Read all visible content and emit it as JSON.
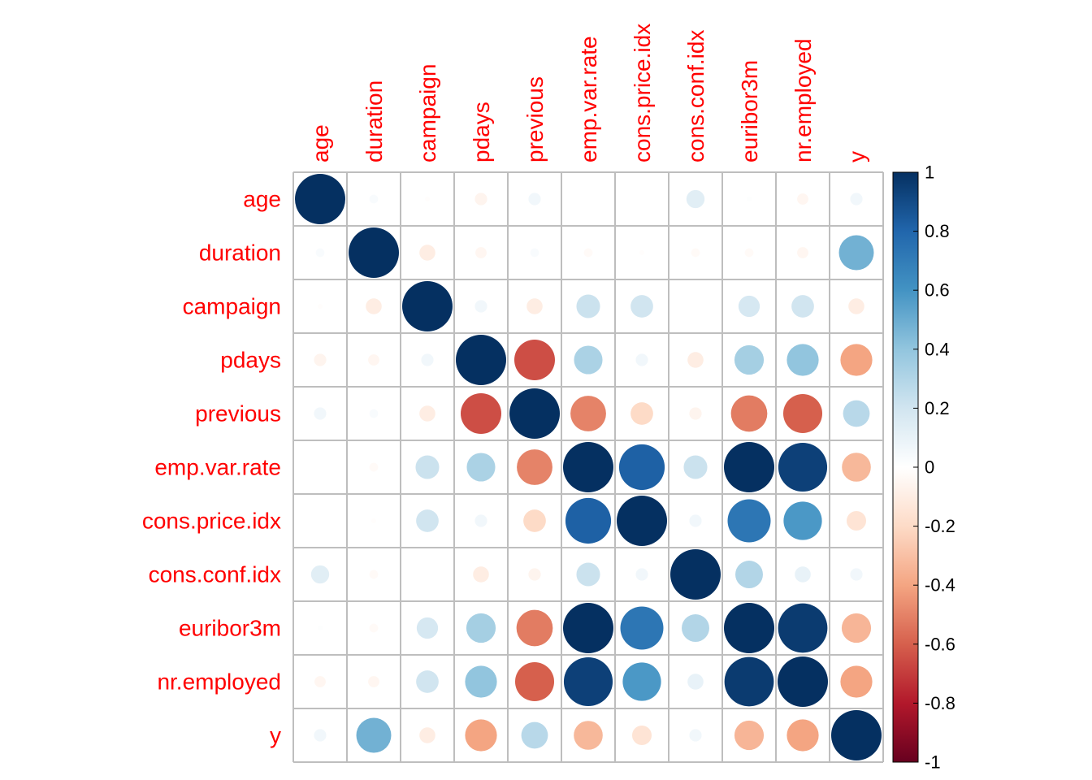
{
  "chart_data": {
    "type": "heatmap",
    "style": "corrplot-circle",
    "variables": [
      "age",
      "duration",
      "campaign",
      "pdays",
      "previous",
      "emp.var.rate",
      "cons.price.idx",
      "cons.conf.idx",
      "euribor3m",
      "nr.employed",
      "y"
    ],
    "matrix": [
      [
        1.0,
        0.03,
        -0.01,
        -0.06,
        0.06,
        0.0,
        0.0,
        0.13,
        0.01,
        -0.05,
        0.06
      ],
      [
        0.03,
        1.0,
        -0.1,
        -0.05,
        0.03,
        -0.03,
        -0.01,
        -0.03,
        -0.03,
        -0.05,
        0.48
      ],
      [
        -0.01,
        -0.1,
        1.0,
        0.06,
        -0.1,
        0.22,
        0.2,
        0.0,
        0.18,
        0.2,
        -0.1
      ],
      [
        -0.06,
        -0.05,
        0.06,
        1.0,
        -0.65,
        0.32,
        0.06,
        -0.1,
        0.34,
        0.4,
        -0.4
      ],
      [
        0.06,
        0.03,
        -0.1,
        -0.65,
        1.0,
        -0.5,
        -0.2,
        -0.06,
        -0.52,
        -0.6,
        0.28
      ],
      [
        0.0,
        -0.03,
        0.22,
        0.32,
        -0.5,
        1.0,
        0.82,
        0.22,
        1.0,
        0.94,
        -0.33
      ],
      [
        0.0,
        -0.01,
        0.2,
        0.06,
        -0.2,
        0.82,
        1.0,
        0.06,
        0.73,
        0.58,
        -0.15
      ],
      [
        0.13,
        -0.03,
        0.0,
        -0.1,
        -0.06,
        0.22,
        0.06,
        1.0,
        0.3,
        0.1,
        0.06
      ],
      [
        0.01,
        -0.03,
        0.18,
        0.34,
        -0.52,
        1.0,
        0.73,
        0.3,
        1.0,
        0.96,
        -0.34
      ],
      [
        -0.05,
        -0.05,
        0.2,
        0.4,
        -0.6,
        0.94,
        0.58,
        0.1,
        0.96,
        1.0,
        -0.4
      ],
      [
        0.06,
        0.48,
        -0.1,
        -0.4,
        0.28,
        -0.33,
        -0.15,
        0.06,
        -0.34,
        -0.4,
        1.0
      ]
    ],
    "value_range": [
      -1,
      1
    ],
    "legend": {
      "ticks": [
        "1",
        "0.8",
        "0.6",
        "0.4",
        "0.2",
        "0",
        "-0.2",
        "-0.4",
        "-0.6",
        "-0.8",
        "-1"
      ],
      "tick_values": [
        1,
        0.8,
        0.6,
        0.4,
        0.2,
        0,
        -0.2,
        -0.4,
        -0.6,
        -0.8,
        -1
      ],
      "position": "right"
    },
    "colors": {
      "scale": [
        "#67001F",
        "#B2182B",
        "#D6604D",
        "#F4A582",
        "#FDDBC7",
        "#FFFFFF",
        "#D1E5F0",
        "#92C5DE",
        "#4393C3",
        "#2166AC",
        "#053061"
      ],
      "label": "#FF0000",
      "grid": "#BEBEBE"
    },
    "grid": true
  }
}
